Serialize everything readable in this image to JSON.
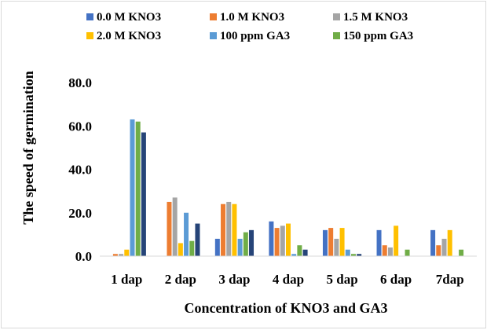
{
  "chart_data": {
    "type": "bar",
    "title": "",
    "xlabel": "Concentration of KNO3 and GA3",
    "ylabel": "The speed of germination",
    "ylim": [
      0,
      80
    ],
    "yticks": [
      "0.0",
      "20.0",
      "40.0",
      "60.0",
      "80.0"
    ],
    "categories": [
      "1 dap",
      "2 dap",
      "3 dap",
      "4 dap",
      "5 dap",
      "6 dap",
      "7dap"
    ],
    "legend_position": "top",
    "grid": false,
    "series": [
      {
        "name": "0.0 M KNO3",
        "color": "#4472c4",
        "values": [
          0,
          0,
          8,
          16,
          12,
          12,
          12
        ]
      },
      {
        "name": "1.0 M KNO3",
        "color": "#ed7d31",
        "values": [
          1,
          25,
          24,
          13,
          13,
          5,
          5
        ]
      },
      {
        "name": "1.5 M KNO3",
        "color": "#a5a5a5",
        "values": [
          1,
          27,
          25,
          14,
          8,
          4,
          8
        ]
      },
      {
        "name": "2.0 M KNO3",
        "color": "#ffc000",
        "values": [
          3,
          6,
          24,
          15,
          13,
          14,
          12
        ]
      },
      {
        "name": "100 ppm GA3",
        "color": "#5b9bd5",
        "values": [
          63,
          20,
          8,
          1,
          3,
          0,
          0
        ]
      },
      {
        "name": "150 ppm GA3",
        "color": "#70ad47",
        "values": [
          62,
          7,
          11,
          5,
          1,
          3,
          3
        ]
      },
      {
        "name": "",
        "color": "#264478",
        "values": [
          57,
          15,
          12,
          3,
          1,
          0,
          0
        ]
      }
    ]
  }
}
